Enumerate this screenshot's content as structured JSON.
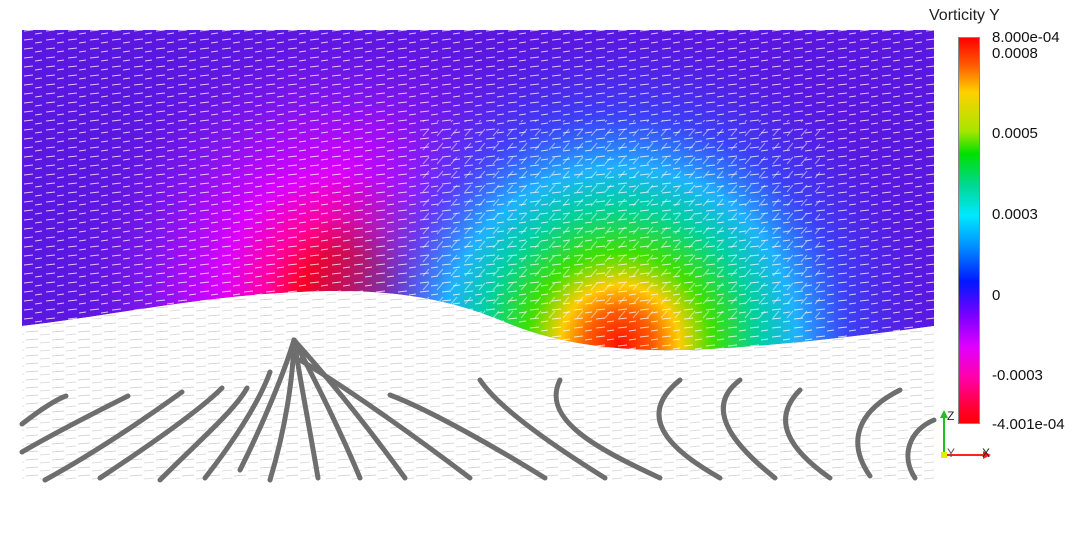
{
  "legend": {
    "title": "Vorticity Y",
    "max_label": "8.000e-04",
    "min_label": "-4.001e-04",
    "range": [
      -0.0004001,
      0.0008
    ],
    "ticks": [
      "0.0008",
      "0.0005",
      "0.0003",
      "0",
      "-0.0003"
    ]
  },
  "axes": {
    "z_label": "Z",
    "x_label": "X",
    "y_label": "Y"
  },
  "colors": {
    "background": "#ffffff",
    "fluid_low": "#5a17e0",
    "bed": "#ffffff",
    "glyph": "#ffffff",
    "streamline": "#b8b8b8",
    "tube": "#6e6e6e",
    "axis_x": "#ff2020",
    "axis_y": "#e8e800",
    "axis_z": "#20c020"
  }
}
